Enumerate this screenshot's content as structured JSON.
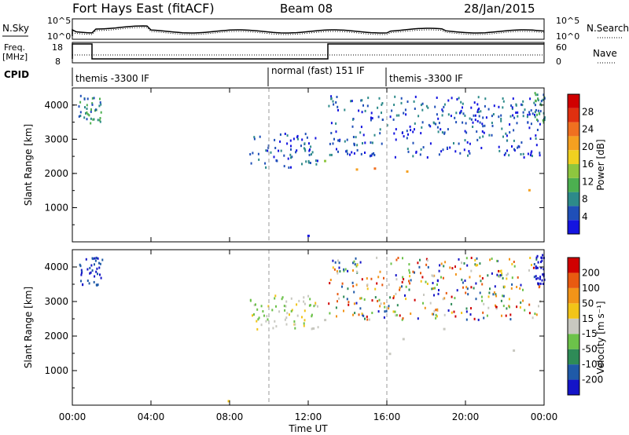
{
  "header": {
    "station": "Fort Hays East (fitACF)",
    "beam": "Beam 08",
    "date": "28/Jan/2015"
  },
  "top_panels": {
    "nsky_label": "N.Sky",
    "nsearch_label": "N.Search",
    "noise_ticks": [
      "10^5",
      "10^0"
    ],
    "noise_ticks_right": [
      "10^5",
      "10^0"
    ],
    "freq_label": "Freq.",
    "freq_unit": "[MHz]",
    "freq_ticks": [
      "18",
      "8"
    ],
    "nave_label": "Nave",
    "nave_ticks": [
      "60",
      "0"
    ],
    "cpid_label": "CPID",
    "cpid_segments": [
      {
        "label": "themis -3300 IF",
        "start_hour": 0
      },
      {
        "label": "normal (fast) 151 IF",
        "start_hour": 10
      },
      {
        "label": "themis -3300 IF",
        "start_hour": 16
      }
    ]
  },
  "colors": {
    "power_scale": [
      "#1414e0",
      "#1f4fb8",
      "#2d8a8a",
      "#4caf50",
      "#8ec63f",
      "#f0d020",
      "#f5a020",
      "#f07020",
      "#e03010",
      "#d00000"
    ],
    "velocity_scale": [
      "#1414c8",
      "#1f5aa8",
      "#2e8b57",
      "#6cc24a",
      "#c8c8c0",
      "#f2c418",
      "#f29418",
      "#e85a10",
      "#d00000"
    ]
  },
  "chart_data": [
    {
      "type": "heatmap",
      "title": "Power",
      "xlabel": "Time UT",
      "ylabel": "Slant Range [km]",
      "x_ticks": [
        "00:00",
        "04:00",
        "08:00",
        "12:00",
        "16:00",
        "20:00",
        "00:00"
      ],
      "y_ticks": [
        "1000",
        "2000",
        "3000",
        "4000"
      ],
      "xlim": [
        0,
        24
      ],
      "ylim": [
        0,
        4500
      ],
      "colorbar": {
        "label": "Power [dB]",
        "ticks": [
          "4",
          "8",
          "12",
          "16",
          "20",
          "24",
          "28"
        ]
      }
    },
    {
      "type": "heatmap",
      "title": "Velocity",
      "xlabel": "Time UT",
      "ylabel": "Slant Range [km]",
      "x_ticks": [
        "00:00",
        "04:00",
        "08:00",
        "12:00",
        "16:00",
        "20:00",
        "00:00"
      ],
      "y_ticks": [
        "1000",
        "2000",
        "3000",
        "4000"
      ],
      "xlim": [
        0,
        24
      ],
      "ylim": [
        0,
        4500
      ],
      "colorbar": {
        "label": "Velocity [m s⁻¹]",
        "ticks": [
          "200",
          "100",
          "50",
          "15",
          "-15",
          "-50",
          "-100",
          "-200"
        ]
      }
    }
  ]
}
